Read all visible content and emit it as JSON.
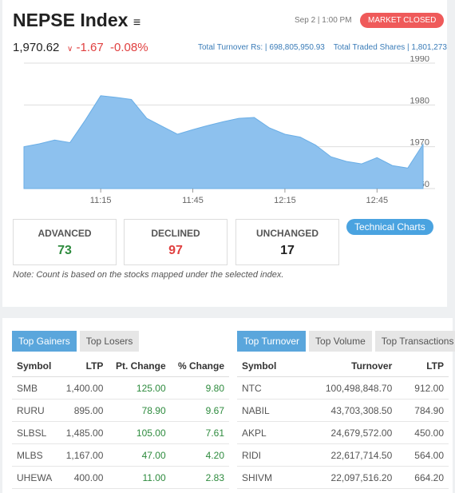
{
  "header": {
    "title": "NEPSE Index",
    "datetime": "Sep 2 | 1:00 PM",
    "status": "MARKET CLOSED",
    "index_value": "1,970.62",
    "change": "-1.67",
    "percent_change": "-0.08%",
    "turnover_label": "Total Turnover Rs:",
    "turnover": "698,805,950.93",
    "shares_label": "Total Traded Shares",
    "shares": "1,801,273"
  },
  "chart_data": {
    "type": "area",
    "categories": [
      null,
      null,
      null,
      null,
      null,
      "11:15",
      null,
      null,
      null,
      null,
      null,
      "11:45",
      null,
      null,
      null,
      null,
      null,
      "12:15",
      null,
      null,
      null,
      null,
      null,
      "12:45",
      null,
      null,
      null
    ],
    "values": [
      1970,
      1970.7,
      1971.6,
      1971,
      1976.4,
      1982.2,
      1981.8,
      1981.3,
      1976.8,
      1974.9,
      1973,
      1974.1,
      1975.1,
      1976,
      1976.8,
      1977,
      1974.5,
      1973,
      1972.3,
      1970.4,
      1967.6,
      1966.5,
      1965.9,
      1967.4,
      1965.5,
      1964.9,
      1970.6
    ],
    "color": "#8dc1ee",
    "ylim": [
      1960,
      1990
    ],
    "yticks": [
      1960,
      1970,
      1980,
      1990
    ],
    "grid": true
  },
  "button": "Technical Charts",
  "stats": [
    {
      "label": "ADVANCED",
      "value": "73"
    },
    {
      "label": "DECLINED",
      "value": "97"
    },
    {
      "label": "UNCHANGED",
      "value": "17"
    }
  ],
  "note": "Note: Count is based on the stocks mapped under the selected index.",
  "gainers": {
    "tabs": [
      "Top Gainers",
      "Top Losers"
    ],
    "columns": [
      "Symbol",
      "LTP",
      "Pt. Change",
      "% Change"
    ],
    "rows": [
      [
        "SMB",
        "1,400.00",
        "125.00",
        "9.80"
      ],
      [
        "RURU",
        "895.00",
        "78.90",
        "9.67"
      ],
      [
        "SLBSL",
        "1,485.00",
        "105.00",
        "7.61"
      ],
      [
        "MLBS",
        "1,167.00",
        "47.00",
        "4.20"
      ],
      [
        "UHEWA",
        "400.00",
        "11.00",
        "2.83"
      ]
    ]
  },
  "turnover": {
    "tabs": [
      "Top Turnover",
      "Top Volume",
      "Top Transactions"
    ],
    "columns": [
      "Symbol",
      "Turnover",
      "LTP"
    ],
    "rows": [
      [
        "NTC",
        "100,498,848.70",
        "912.00"
      ],
      [
        "NABIL",
        "43,703,308.50",
        "784.90"
      ],
      [
        "AKPL",
        "24,679,572.00",
        "450.00"
      ],
      [
        "RIDI",
        "22,617,714.50",
        "564.00"
      ],
      [
        "SHIVM",
        "22,097,516.20",
        "664.20"
      ]
    ]
  }
}
